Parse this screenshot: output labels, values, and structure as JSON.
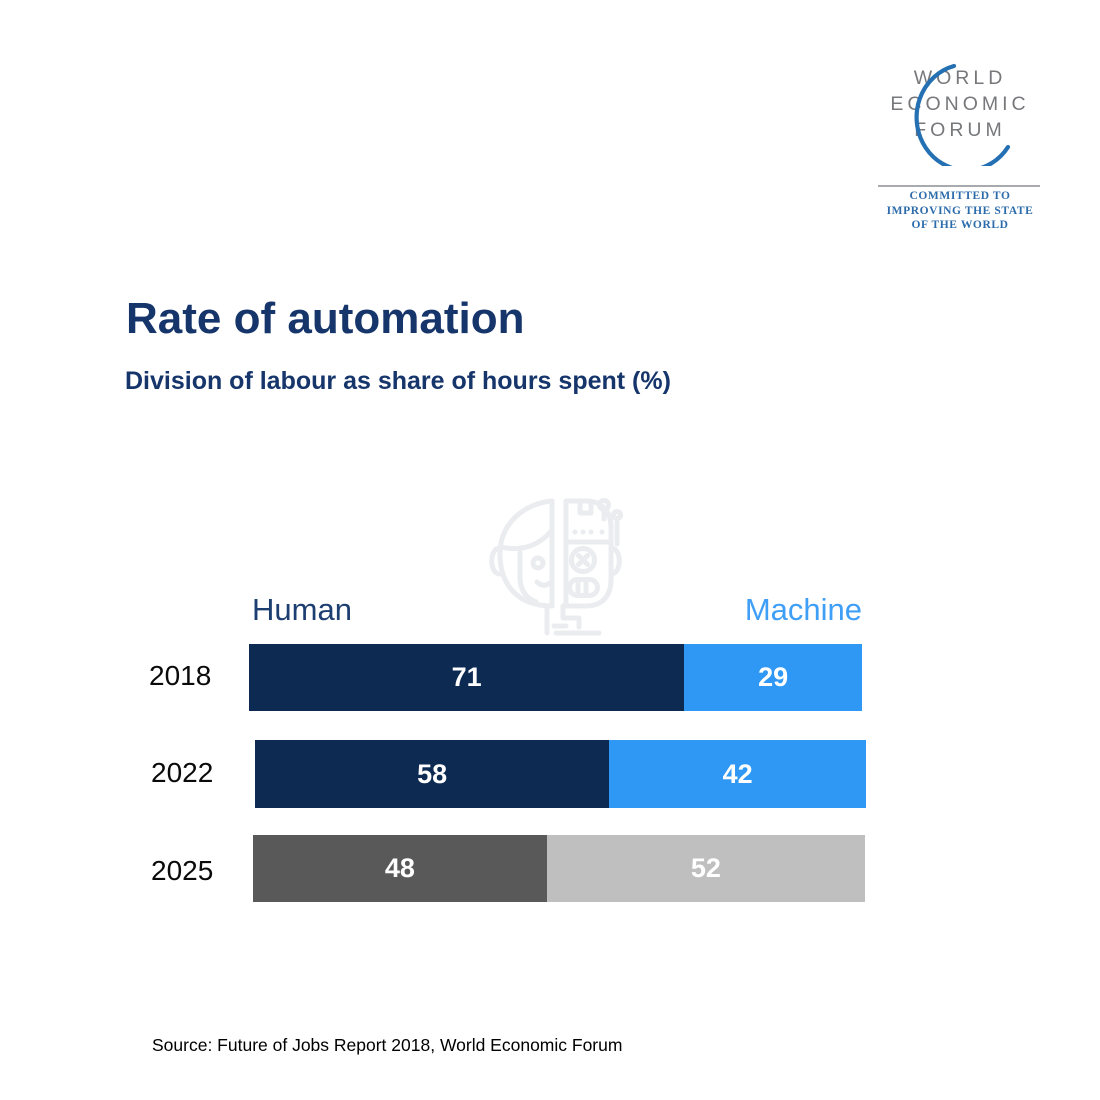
{
  "logo": {
    "name": "World Economic Forum",
    "word_lines": [
      "WORLD",
      "ECONOMIC",
      "FORUM"
    ],
    "tagline_lines": [
      "COMMITTED TO",
      "IMPROVING THE STATE",
      "OF THE WORLD"
    ],
    "colors": {
      "wordmark": "#77787b",
      "tagline": "#2d6cab",
      "arc": "#2470b3",
      "divider": "#a8aaad"
    }
  },
  "header": {
    "title": "Rate of automation",
    "subtitle": "Division of labour as share of hours spent (%)",
    "color": "#16356b"
  },
  "watermark": {
    "icon": "half-human-half-robot-head",
    "color": "#eaecef"
  },
  "chart_data": {
    "type": "bar",
    "variant": "horizontal-stacked-100-percent",
    "title": "Rate of automation",
    "subtitle": "Division of labour as share of hours spent (%)",
    "categories": [
      "2018",
      "2022",
      "2025"
    ],
    "series": [
      {
        "name": "Human",
        "values": [
          71,
          58,
          48
        ]
      },
      {
        "name": "Machine",
        "values": [
          29,
          42,
          52
        ]
      }
    ],
    "value_unit": "percent of hours spent",
    "legend": [
      "Human",
      "Machine"
    ],
    "legend_position": "above-bars, Human left / Machine right",
    "legend_colors": {
      "Human": "#1d3e70",
      "Machine": "#3f9ef6"
    },
    "row_segment_colors": [
      {
        "human": "#0d2a52",
        "machine": "#2e98f4"
      },
      {
        "human": "#0d2a52",
        "machine": "#2e98f4"
      },
      {
        "human": "#595959",
        "machine": "#bfbfbf"
      }
    ],
    "value_label_color": "#ffffff",
    "category_label_color": "#0a0a0a",
    "grid": false,
    "note": "2025 row rendered in gray (projection)"
  },
  "source": {
    "text": "Source: Future of Jobs Report 2018, World Economic Forum"
  }
}
